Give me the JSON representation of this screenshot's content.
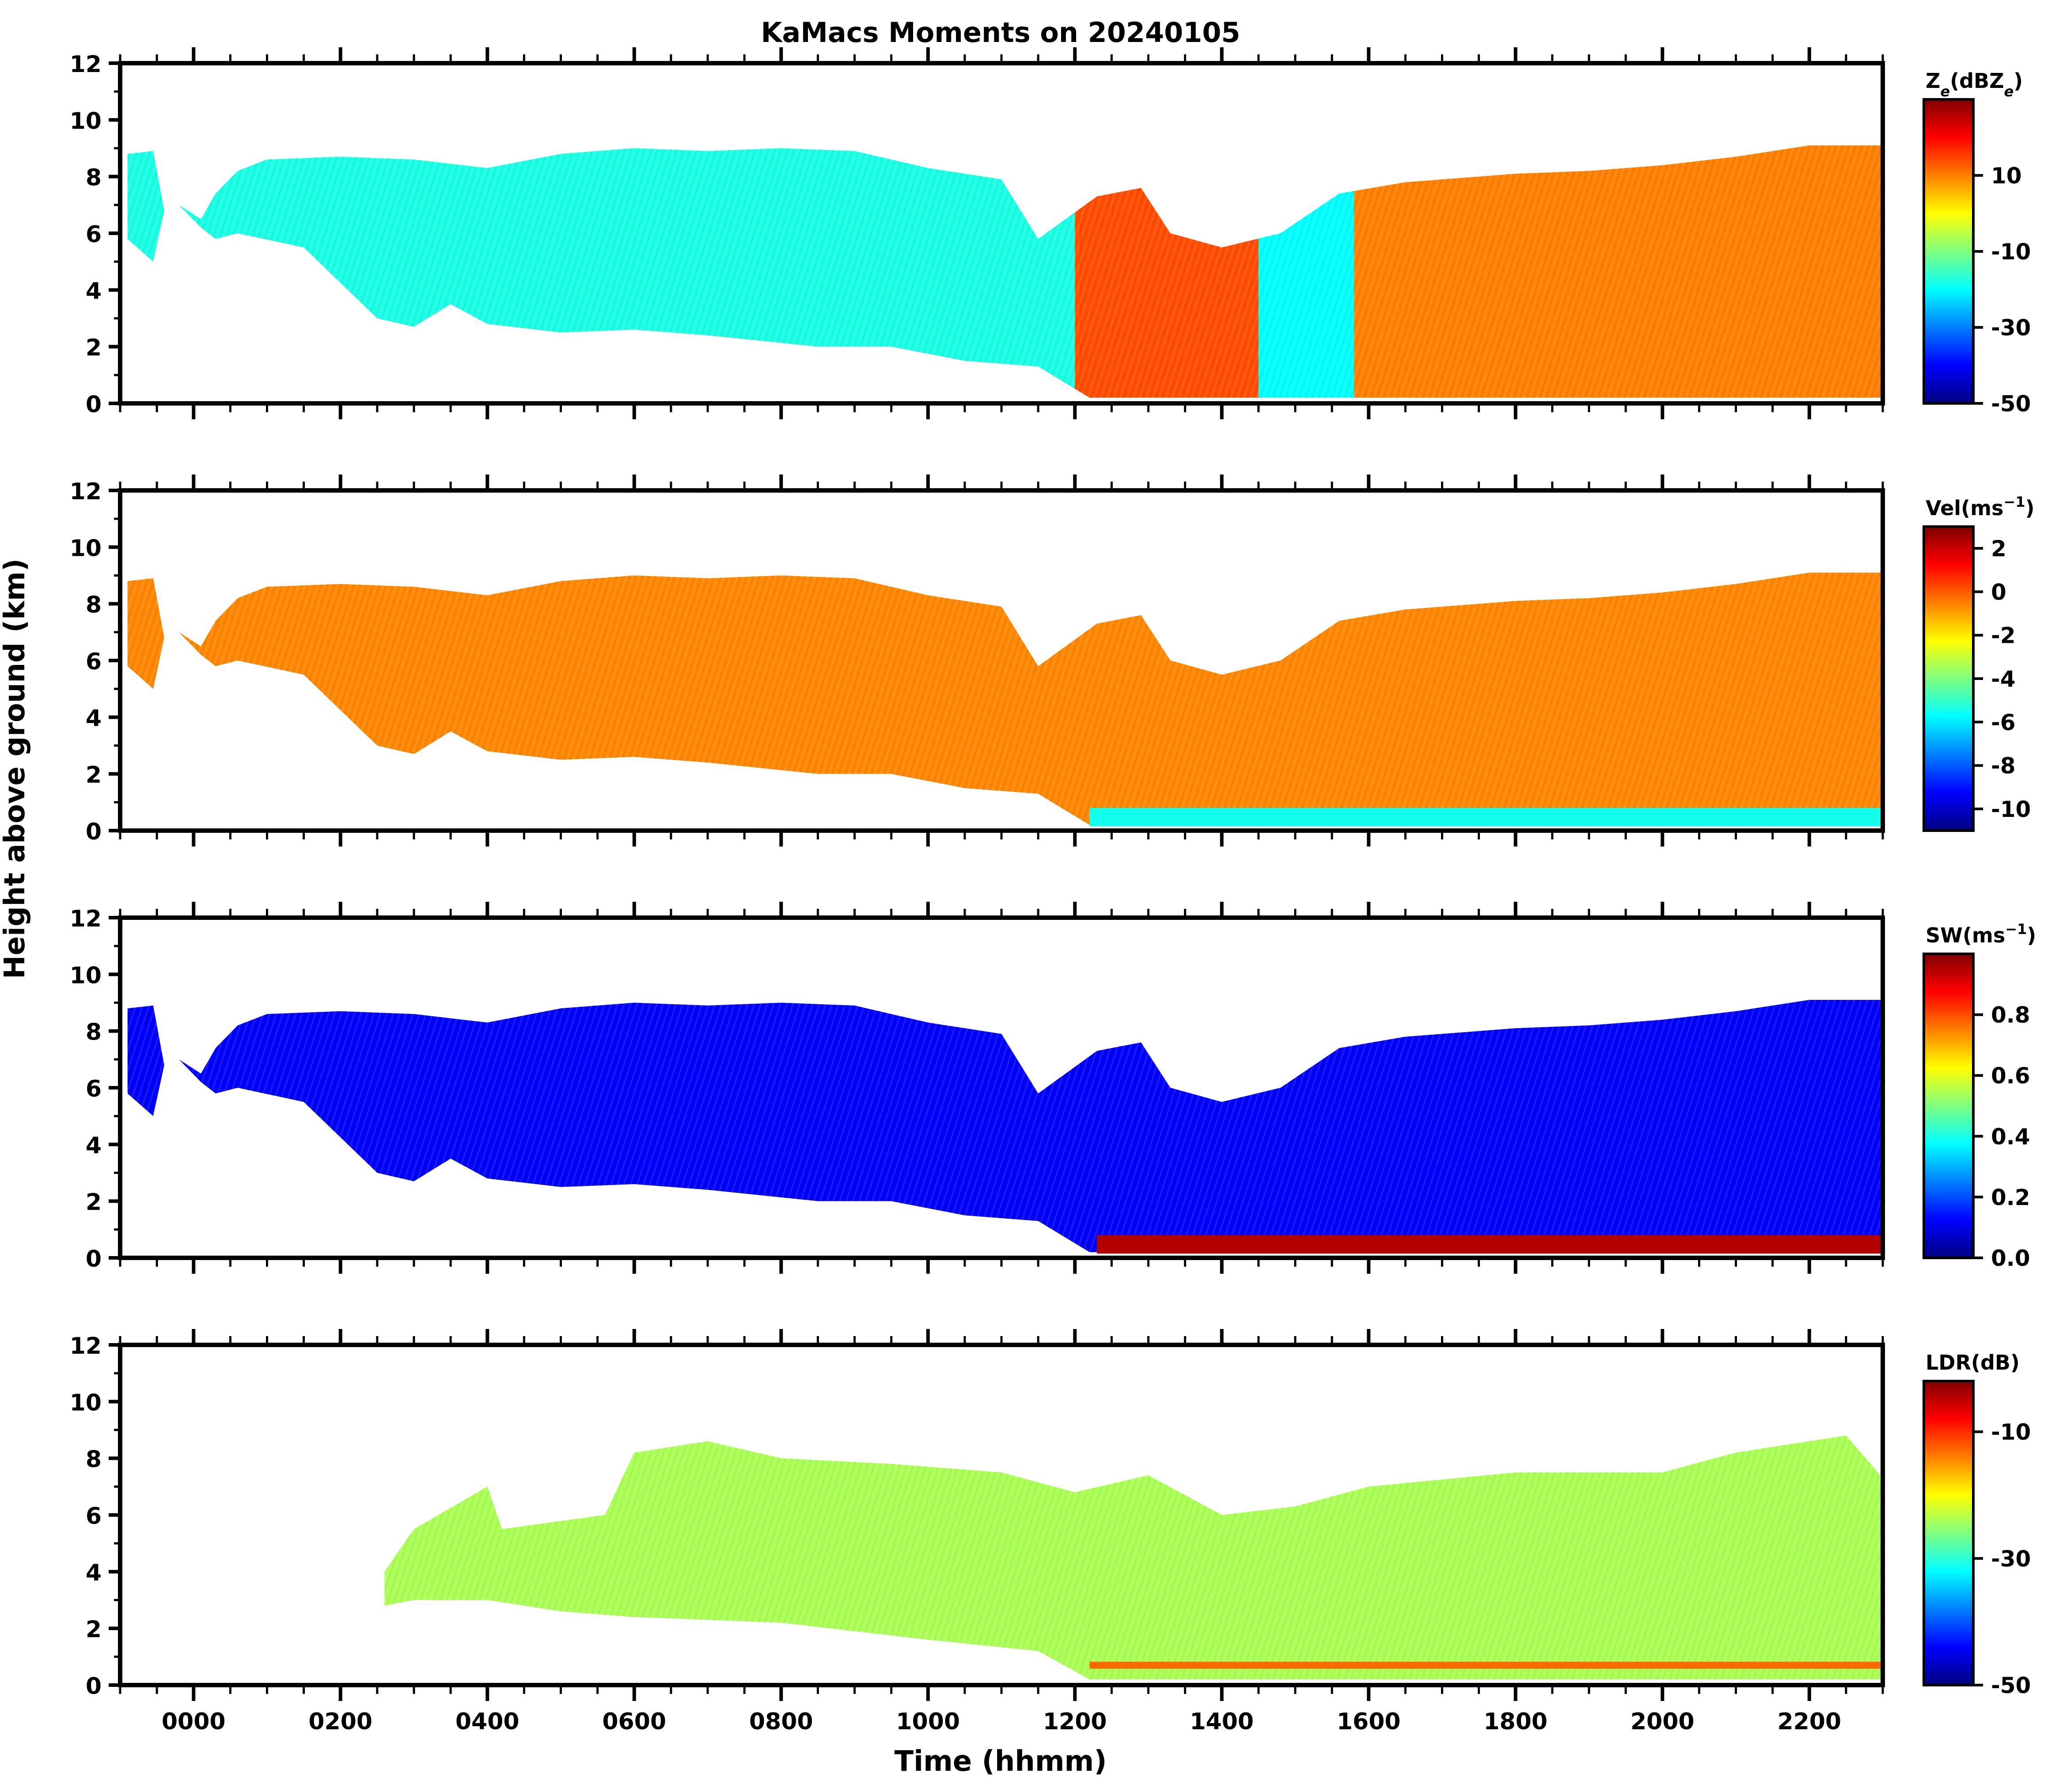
{
  "title": "KaMacs Moments on 20240105",
  "ylabel": "Height above ground (km)",
  "xlabel": "Time (hhmm)",
  "chart_data": {
    "type": "heatmap",
    "x_range_hhmm": [
      -100,
      2300
    ],
    "x_ticks": [
      {
        "value": 0,
        "label": "0000"
      },
      {
        "value": 200,
        "label": "0200"
      },
      {
        "value": 400,
        "label": "0400"
      },
      {
        "value": 600,
        "label": "0600"
      },
      {
        "value": 800,
        "label": "0800"
      },
      {
        "value": 1000,
        "label": "1000"
      },
      {
        "value": 1200,
        "label": "1200"
      },
      {
        "value": 1400,
        "label": "1400"
      },
      {
        "value": 1600,
        "label": "1600"
      },
      {
        "value": 1800,
        "label": "1800"
      },
      {
        "value": 2000,
        "label": "2000"
      },
      {
        "value": 2200,
        "label": "2200"
      }
    ],
    "y_range_km": [
      0,
      12
    ],
    "y_ticks": [
      0,
      2,
      4,
      6,
      8,
      10,
      12
    ],
    "colormap": [
      "#00007f",
      "#0000ff",
      "#007fff",
      "#00ffff",
      "#7fff7f",
      "#ffff00",
      "#ff7f00",
      "#ff0000",
      "#7f0000"
    ],
    "panels": [
      {
        "id": "ze",
        "colorbar_label": "Ze(dBZe)",
        "label_main": "Z",
        "label_sub": "e",
        "label_open": "(dBZ",
        "label_sub2": "e",
        "label_close": ")",
        "clim": [
          -50,
          30
        ],
        "colorbar_ticks": [
          {
            "value": 10,
            "label": "10"
          },
          {
            "value": -10,
            "label": "-10"
          },
          {
            "value": -30,
            "label": "-30"
          },
          {
            "value": -50,
            "label": "-50"
          }
        ],
        "echo_top_km": [
          [
            -90,
            8.8
          ],
          [
            -55,
            8.9
          ],
          [
            -40,
            6.8
          ],
          [
            -20,
            7.0
          ],
          [
            10,
            6.5
          ],
          [
            30,
            7.4
          ],
          [
            60,
            8.2
          ],
          [
            100,
            8.6
          ],
          [
            200,
            8.7
          ],
          [
            300,
            8.6
          ],
          [
            400,
            8.3
          ],
          [
            500,
            8.8
          ],
          [
            600,
            9.0
          ],
          [
            700,
            8.9
          ],
          [
            800,
            9.0
          ],
          [
            900,
            8.9
          ],
          [
            1000,
            8.3
          ],
          [
            1100,
            7.9
          ],
          [
            1150,
            5.8
          ],
          [
            1230,
            7.3
          ],
          [
            1290,
            7.6
          ],
          [
            1330,
            6.0
          ],
          [
            1400,
            5.5
          ],
          [
            1480,
            6.0
          ],
          [
            1560,
            7.4
          ],
          [
            1650,
            7.8
          ],
          [
            1800,
            8.1
          ],
          [
            1900,
            8.2
          ],
          [
            2000,
            8.4
          ],
          [
            2100,
            8.7
          ],
          [
            2200,
            9.1
          ],
          [
            2300,
            9.1
          ]
        ],
        "echo_base_km": [
          [
            -90,
            5.8
          ],
          [
            -55,
            5.0
          ],
          [
            -40,
            6.8
          ],
          [
            -20,
            7.0
          ],
          [
            10,
            6.2
          ],
          [
            30,
            5.8
          ],
          [
            60,
            6.0
          ],
          [
            150,
            5.5
          ],
          [
            250,
            3.0
          ],
          [
            300,
            2.7
          ],
          [
            350,
            3.5
          ],
          [
            400,
            2.8
          ],
          [
            500,
            2.5
          ],
          [
            600,
            2.6
          ],
          [
            700,
            2.4
          ],
          [
            850,
            2.0
          ],
          [
            950,
            2.0
          ],
          [
            1050,
            1.5
          ],
          [
            1150,
            1.3
          ],
          [
            1220,
            0.2
          ],
          [
            2300,
            0.2
          ]
        ],
        "core_bands": [
          {
            "x": [
              -90,
              1200
            ],
            "value": -18
          },
          {
            "x": [
              1200,
              1450
            ],
            "value": 14
          },
          {
            "x": [
              1450,
              1580
            ],
            "value": -20
          },
          {
            "x": [
              1580,
              2300
            ],
            "value": 10
          }
        ]
      },
      {
        "id": "vel",
        "colorbar_label": "Vel(ms-1)",
        "label_main": "Vel(ms",
        "label_sup": "−1",
        "label_close": ")",
        "clim": [
          -11,
          3
        ],
        "colorbar_ticks": [
          {
            "value": 2,
            "label": "2"
          },
          {
            "value": 0,
            "label": "0"
          },
          {
            "value": -2,
            "label": "-2"
          },
          {
            "value": -4,
            "label": "-4"
          },
          {
            "value": -6,
            "label": "-6"
          },
          {
            "value": -8,
            "label": "-8"
          },
          {
            "value": -10,
            "label": "-10"
          }
        ],
        "core_bands": [
          {
            "x": [
              -90,
              2300
            ],
            "value": -0.6
          }
        ],
        "surface_layer": {
          "x": [
            1220,
            2300
          ],
          "top_km": 0.8,
          "value": -5.5
        }
      },
      {
        "id": "sw",
        "colorbar_label": "SW(ms-1)",
        "label_main": "SW(ms",
        "label_sup": "−1",
        "label_close": ")",
        "clim": [
          0.0,
          1.0
        ],
        "colorbar_ticks": [
          {
            "value": 0.8,
            "label": "0.8"
          },
          {
            "value": 0.6,
            "label": "0.6"
          },
          {
            "value": 0.4,
            "label": "0.4"
          },
          {
            "value": 0.2,
            "label": "0.2"
          },
          {
            "value": 0.0,
            "label": "0.0"
          }
        ],
        "core_bands": [
          {
            "x": [
              -90,
              2300
            ],
            "value": 0.12
          }
        ],
        "surface_layer": {
          "x": [
            1230,
            2300
          ],
          "top_km": 0.8,
          "value": 0.95
        }
      },
      {
        "id": "ldr",
        "colorbar_label": "LDR(dB)",
        "label_main": "LDR(dB)",
        "clim": [
          -50,
          -2
        ],
        "colorbar_ticks": [
          {
            "value": -10,
            "label": "-10"
          },
          {
            "value": -30,
            "label": "-30"
          },
          {
            "value": -50,
            "label": "-50"
          }
        ],
        "echo_top_km": [
          [
            260,
            4.0
          ],
          [
            300,
            5.5
          ],
          [
            400,
            7.0
          ],
          [
            420,
            5.5
          ],
          [
            560,
            6.0
          ],
          [
            600,
            8.2
          ],
          [
            700,
            8.6
          ],
          [
            800,
            8.0
          ],
          [
            950,
            7.8
          ],
          [
            1100,
            7.5
          ],
          [
            1200,
            6.8
          ],
          [
            1300,
            7.4
          ],
          [
            1400,
            6.0
          ],
          [
            1500,
            6.3
          ],
          [
            1600,
            7.0
          ],
          [
            1800,
            7.5
          ],
          [
            2000,
            7.5
          ],
          [
            2100,
            8.2
          ],
          [
            2250,
            8.8
          ],
          [
            2300,
            7.3
          ]
        ],
        "echo_base_km": [
          [
            260,
            2.8
          ],
          [
            300,
            3.0
          ],
          [
            400,
            3.0
          ],
          [
            500,
            2.6
          ],
          [
            600,
            2.4
          ],
          [
            800,
            2.2
          ],
          [
            1000,
            1.6
          ],
          [
            1150,
            1.2
          ],
          [
            1220,
            0.2
          ],
          [
            2300,
            0.2
          ]
        ],
        "core_bands": [
          {
            "x": [
              260,
              2300
            ],
            "value": -24
          }
        ],
        "melting_layer": {
          "x": [
            1220,
            2300
          ],
          "height_km": 0.7,
          "value": -13
        }
      }
    ]
  }
}
